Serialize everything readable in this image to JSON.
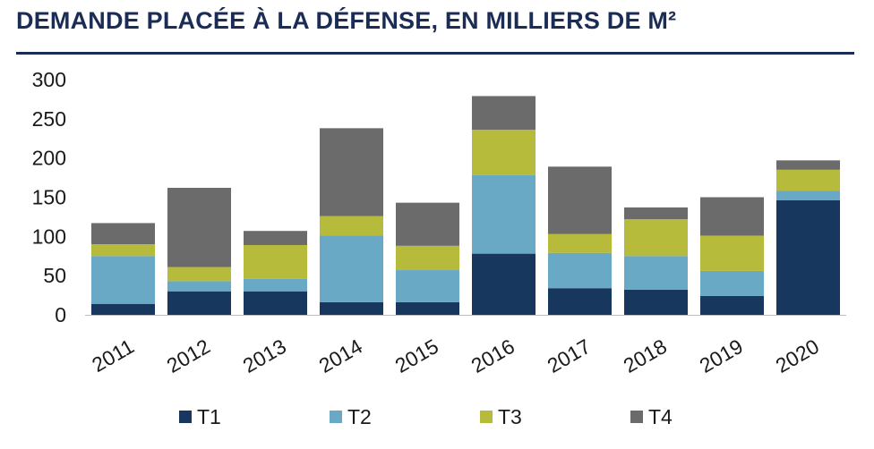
{
  "title": "DEMANDE PLACÉE À LA DÉFENSE, EN MILLIERS DE M²",
  "chart_data": {
    "type": "bar",
    "stacked": true,
    "categories": [
      "2011",
      "2012",
      "2013",
      "2014",
      "2015",
      "2016",
      "2017",
      "2018",
      "2019",
      "2020"
    ],
    "series": [
      {
        "name": "T1",
        "color": "#17375e",
        "values": [
          14,
          30,
          30,
          16,
          16,
          78,
          34,
          32,
          24,
          146
        ]
      },
      {
        "name": "T2",
        "color": "#6aa9c6",
        "values": [
          61,
          13,
          16,
          85,
          41,
          100,
          45,
          43,
          32,
          12
        ]
      },
      {
        "name": "T3",
        "color": "#b7bb3b",
        "values": [
          15,
          18,
          43,
          25,
          31,
          58,
          24,
          47,
          45,
          27
        ]
      },
      {
        "name": "T4",
        "color": "#6b6b6b",
        "values": [
          27,
          101,
          18,
          112,
          55,
          43,
          86,
          15,
          49,
          12
        ]
      }
    ],
    "yticks": [
      0,
      50,
      100,
      150,
      200,
      250,
      300
    ],
    "ylim": [
      0,
      300
    ],
    "grid": false,
    "legend_position": "bottom"
  }
}
